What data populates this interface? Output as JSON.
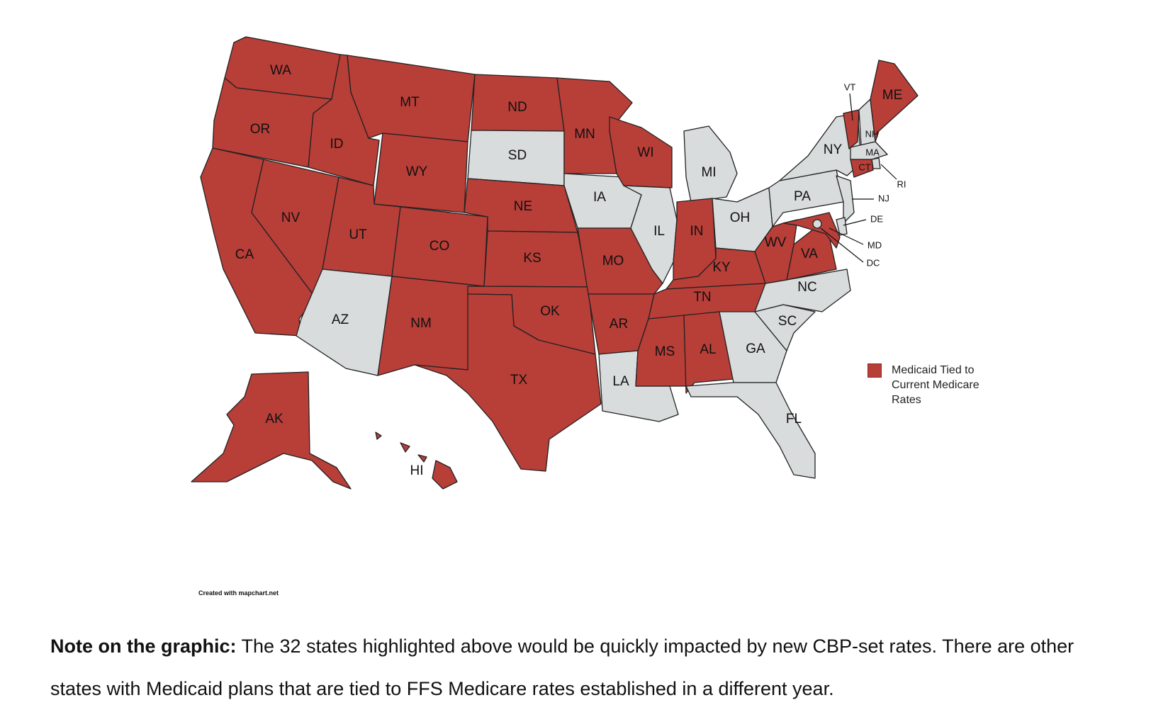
{
  "colors": {
    "highlighted": "#b83e38",
    "other": "#d8dcdc",
    "border": "#222222"
  },
  "legend": {
    "label": "Medicaid Tied to Current Medicare Rates"
  },
  "credit": "Created with mapchart.net",
  "note": {
    "bold": "Note on the graphic:",
    "text": " The 32 states highlighted above would be quickly impacted by new CBP-set rates.  There are other states with Medicaid plans that are tied to FFS Medicare rates established in a different year."
  },
  "states": [
    {
      "abbr": "WA",
      "highlighted": true
    },
    {
      "abbr": "OR",
      "highlighted": true
    },
    {
      "abbr": "CA",
      "highlighted": true
    },
    {
      "abbr": "NV",
      "highlighted": true
    },
    {
      "abbr": "ID",
      "highlighted": true
    },
    {
      "abbr": "MT",
      "highlighted": true
    },
    {
      "abbr": "WY",
      "highlighted": true
    },
    {
      "abbr": "UT",
      "highlighted": true
    },
    {
      "abbr": "AZ",
      "highlighted": false
    },
    {
      "abbr": "CO",
      "highlighted": true
    },
    {
      "abbr": "NM",
      "highlighted": true
    },
    {
      "abbr": "ND",
      "highlighted": true
    },
    {
      "abbr": "SD",
      "highlighted": false
    },
    {
      "abbr": "NE",
      "highlighted": true
    },
    {
      "abbr": "KS",
      "highlighted": true
    },
    {
      "abbr": "OK",
      "highlighted": true
    },
    {
      "abbr": "TX",
      "highlighted": true
    },
    {
      "abbr": "MN",
      "highlighted": true
    },
    {
      "abbr": "IA",
      "highlighted": false
    },
    {
      "abbr": "MO",
      "highlighted": true
    },
    {
      "abbr": "AR",
      "highlighted": true
    },
    {
      "abbr": "LA",
      "highlighted": false
    },
    {
      "abbr": "WI",
      "highlighted": true
    },
    {
      "abbr": "IL",
      "highlighted": false
    },
    {
      "abbr": "MI",
      "highlighted": false
    },
    {
      "abbr": "IN",
      "highlighted": true
    },
    {
      "abbr": "OH",
      "highlighted": false
    },
    {
      "abbr": "KY",
      "highlighted": true
    },
    {
      "abbr": "TN",
      "highlighted": true
    },
    {
      "abbr": "MS",
      "highlighted": true
    },
    {
      "abbr": "AL",
      "highlighted": true
    },
    {
      "abbr": "GA",
      "highlighted": false
    },
    {
      "abbr": "FL",
      "highlighted": false
    },
    {
      "abbr": "SC",
      "highlighted": false
    },
    {
      "abbr": "NC",
      "highlighted": false
    },
    {
      "abbr": "VA",
      "highlighted": true
    },
    {
      "abbr": "WV",
      "highlighted": true
    },
    {
      "abbr": "PA",
      "highlighted": false
    },
    {
      "abbr": "NY",
      "highlighted": false
    },
    {
      "abbr": "VT",
      "highlighted": true
    },
    {
      "abbr": "NH",
      "highlighted": false
    },
    {
      "abbr": "ME",
      "highlighted": true
    },
    {
      "abbr": "MA",
      "highlighted": false
    },
    {
      "abbr": "RI",
      "highlighted": false
    },
    {
      "abbr": "CT",
      "highlighted": true
    },
    {
      "abbr": "NJ",
      "highlighted": false
    },
    {
      "abbr": "DE",
      "highlighted": false
    },
    {
      "abbr": "MD",
      "highlighted": true
    },
    {
      "abbr": "DC",
      "highlighted": false
    },
    {
      "abbr": "AK",
      "highlighted": true
    },
    {
      "abbr": "HI",
      "highlighted": true
    }
  ]
}
